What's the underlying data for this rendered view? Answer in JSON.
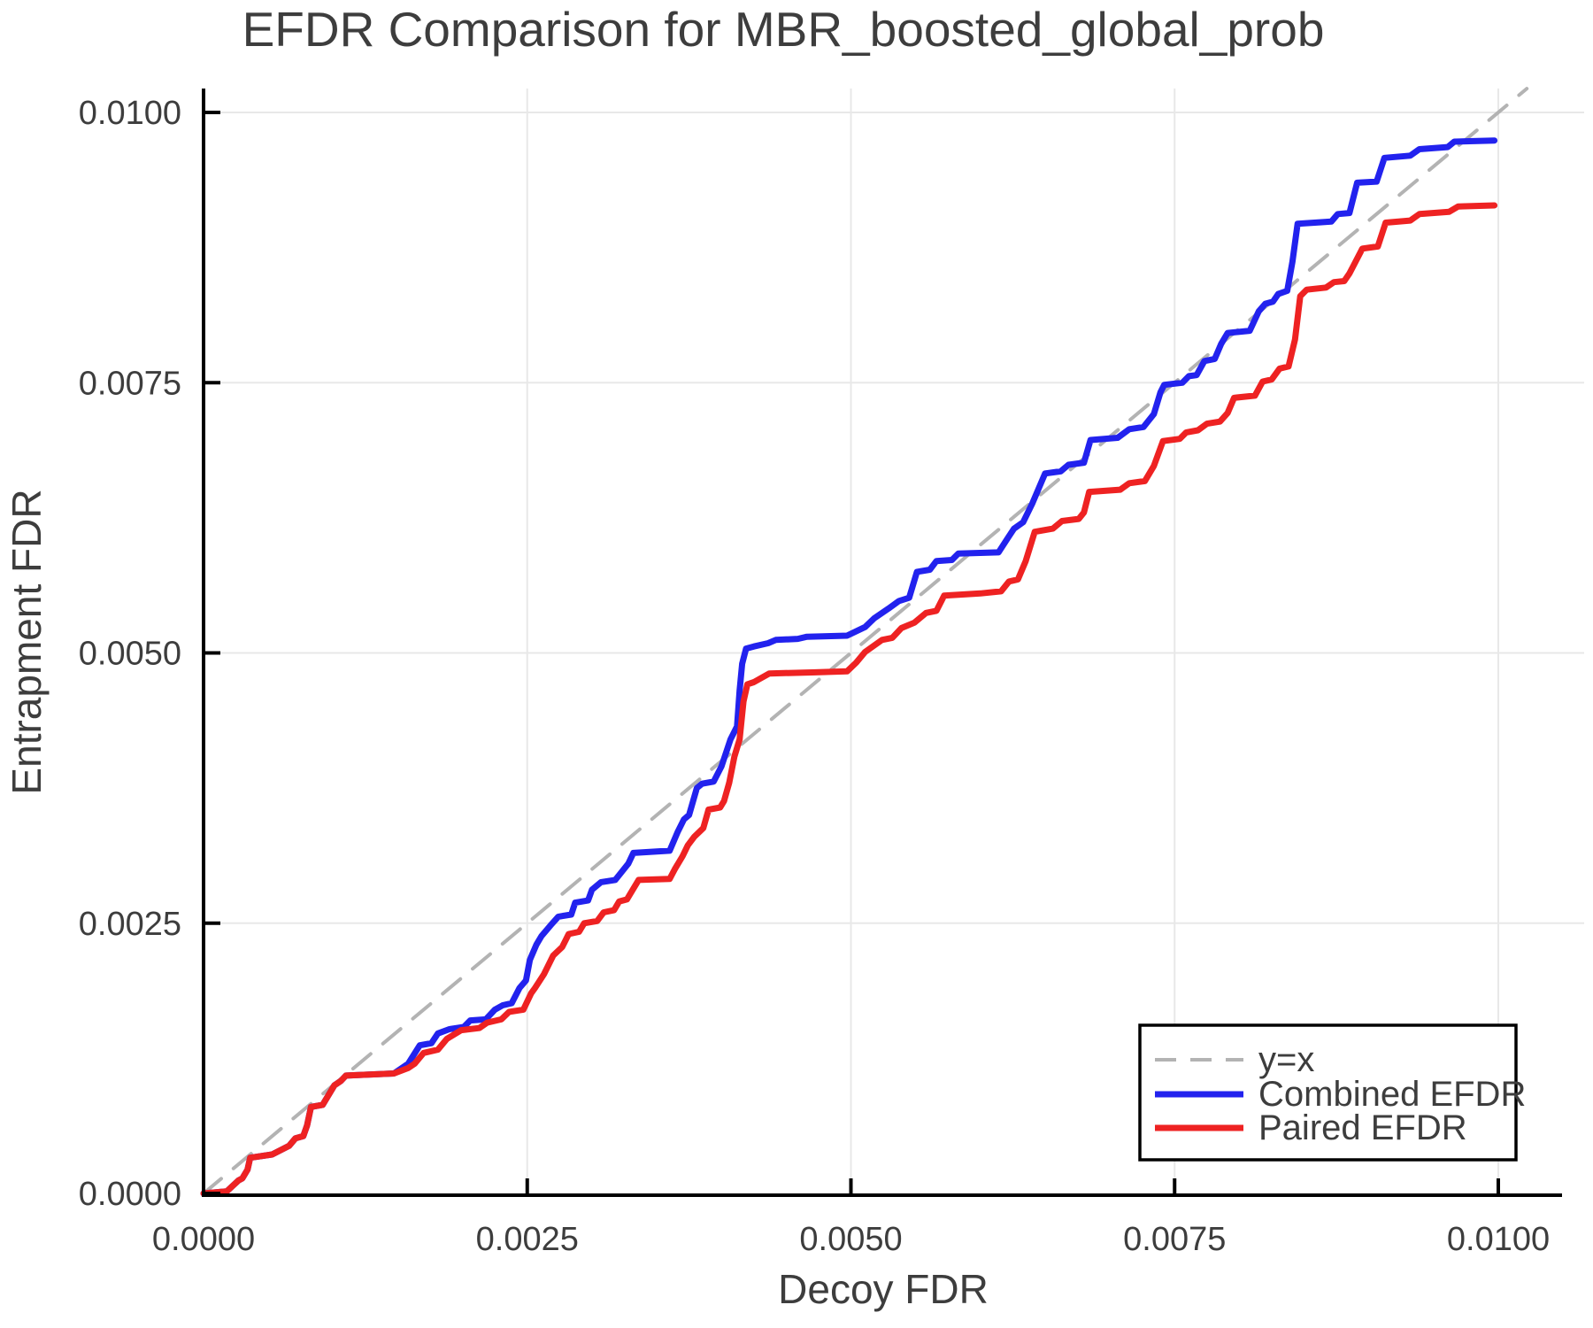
{
  "title": "EFDR Comparison for MBR_boosted_global_prob",
  "axes": {
    "xlabel": "Decoy FDR",
    "ylabel": "Entrapment FDR",
    "x_ticks": {
      "values": [
        0.0,
        0.0025,
        0.005,
        0.0075,
        0.01
      ],
      "labels": [
        "0.0000",
        "0.0025",
        "0.0050",
        "0.0075",
        "0.0100"
      ]
    },
    "y_ticks": {
      "values": [
        0.0,
        0.0025,
        0.005,
        0.0075,
        0.01
      ],
      "labels": [
        "0.0000",
        "0.0025",
        "0.0050",
        "0.0075",
        "0.0100"
      ]
    }
  },
  "colors": {
    "background": "#ffffff",
    "grid": "#e8e8e8",
    "spine": "#000000",
    "text": "#3d3d3d",
    "diagonal": "#b3b3b3",
    "combined": "#2222ee",
    "paired": "#ee2222",
    "legend_border": "#000000",
    "legend_fill": "#ffffff"
  },
  "legend": {
    "position": "lower right"
  },
  "chart_data": {
    "type": "line",
    "title": "EFDR Comparison for MBR_boosted_global_prob",
    "xlabel": "Decoy FDR",
    "ylabel": "Entrapment FDR",
    "xlim": [
      0.0,
      0.0105
    ],
    "ylim": [
      0.0,
      0.0102
    ],
    "grid": true,
    "legend_position": "lower right",
    "series": [
      {
        "name": "y=x",
        "color": "#b3b3b3",
        "style": "dashed",
        "points": [
          [
            0.0,
            0.0
          ],
          [
            0.01022,
            0.01022
          ]
        ]
      },
      {
        "name": "Combined EFDR",
        "color": "#2222ee",
        "style": "solid",
        "points": [
          [
            0.0,
            0.0
          ],
          [
            0.00018,
            2e-05
          ],
          [
            0.00027,
            0.00012
          ],
          [
            0.0003,
            0.00014
          ],
          [
            0.00034,
            0.00022
          ],
          [
            0.00036,
            0.00033
          ],
          [
            0.00053,
            0.00036
          ],
          [
            0.00066,
            0.00044
          ],
          [
            0.00071,
            0.00051
          ],
          [
            0.00077,
            0.00053
          ],
          [
            0.0008,
            0.00063
          ],
          [
            0.00083,
            0.0008
          ],
          [
            0.00092,
            0.00082
          ],
          [
            0.00101,
            0.001
          ],
          [
            0.00106,
            0.00104
          ],
          [
            0.0011,
            0.00109
          ],
          [
            0.00147,
            0.00111
          ],
          [
            0.00158,
            0.0012
          ],
          [
            0.00167,
            0.00137
          ],
          [
            0.00176,
            0.00139
          ],
          [
            0.00181,
            0.00148
          ],
          [
            0.0019,
            0.00152
          ],
          [
            0.00201,
            0.00154
          ],
          [
            0.00206,
            0.0016
          ],
          [
            0.00218,
            0.00161
          ],
          [
            0.00225,
            0.0017
          ],
          [
            0.00231,
            0.00174
          ],
          [
            0.00238,
            0.00176
          ],
          [
            0.00244,
            0.0019
          ],
          [
            0.00249,
            0.00197
          ],
          [
            0.00252,
            0.00216
          ],
          [
            0.00257,
            0.0023
          ],
          [
            0.00261,
            0.00238
          ],
          [
            0.00268,
            0.00248
          ],
          [
            0.00274,
            0.00256
          ],
          [
            0.00284,
            0.00258
          ],
          [
            0.00287,
            0.00269
          ],
          [
            0.00297,
            0.00271
          ],
          [
            0.003,
            0.00281
          ],
          [
            0.00307,
            0.00288
          ],
          [
            0.00318,
            0.0029
          ],
          [
            0.00322,
            0.00296
          ],
          [
            0.00328,
            0.00305
          ],
          [
            0.00332,
            0.00315
          ],
          [
            0.0036,
            0.00317
          ],
          [
            0.00366,
            0.00334
          ],
          [
            0.00371,
            0.00346
          ],
          [
            0.00375,
            0.0035
          ],
          [
            0.00381,
            0.00375
          ],
          [
            0.00385,
            0.00379
          ],
          [
            0.00394,
            0.00381
          ],
          [
            0.004,
            0.00395
          ],
          [
            0.00407,
            0.0042
          ],
          [
            0.00412,
            0.00432
          ],
          [
            0.00414,
            0.00465
          ],
          [
            0.00416,
            0.0049
          ],
          [
            0.00419,
            0.00504
          ],
          [
            0.00425,
            0.00506
          ],
          [
            0.00436,
            0.00509
          ],
          [
            0.00442,
            0.00512
          ],
          [
            0.00459,
            0.00513
          ],
          [
            0.00466,
            0.00515
          ],
          [
            0.00497,
            0.00516
          ],
          [
            0.00511,
            0.00524
          ],
          [
            0.00518,
            0.00532
          ],
          [
            0.00529,
            0.00541
          ],
          [
            0.00537,
            0.00548
          ],
          [
            0.00545,
            0.00551
          ],
          [
            0.00551,
            0.00575
          ],
          [
            0.00561,
            0.00577
          ],
          [
            0.00566,
            0.00585
          ],
          [
            0.00578,
            0.00586
          ],
          [
            0.00583,
            0.00592
          ],
          [
            0.00614,
            0.00593
          ],
          [
            0.00621,
            0.00606
          ],
          [
            0.00626,
            0.00615
          ],
          [
            0.00633,
            0.00621
          ],
          [
            0.0064,
            0.00638
          ],
          [
            0.0065,
            0.00666
          ],
          [
            0.00662,
            0.00668
          ],
          [
            0.00668,
            0.00674
          ],
          [
            0.0068,
            0.00676
          ],
          [
            0.00685,
            0.00697
          ],
          [
            0.00706,
            0.00699
          ],
          [
            0.00715,
            0.00707
          ],
          [
            0.00726,
            0.00709
          ],
          [
            0.00734,
            0.00721
          ],
          [
            0.00739,
            0.00741
          ],
          [
            0.00742,
            0.00748
          ],
          [
            0.00756,
            0.0075
          ],
          [
            0.00761,
            0.00756
          ],
          [
            0.00767,
            0.00757
          ],
          [
            0.00773,
            0.0077
          ],
          [
            0.00781,
            0.00772
          ],
          [
            0.00786,
            0.00786
          ],
          [
            0.00791,
            0.00796
          ],
          [
            0.00808,
            0.00798
          ],
          [
            0.00815,
            0.00816
          ],
          [
            0.0082,
            0.00823
          ],
          [
            0.00826,
            0.00825
          ],
          [
            0.0083,
            0.00832
          ],
          [
            0.00837,
            0.00835
          ],
          [
            0.00841,
            0.00862
          ],
          [
            0.00845,
            0.00897
          ],
          [
            0.00871,
            0.00899
          ],
          [
            0.00876,
            0.00906
          ],
          [
            0.00885,
            0.00907
          ],
          [
            0.00891,
            0.00935
          ],
          [
            0.00906,
            0.00936
          ],
          [
            0.00912,
            0.00958
          ],
          [
            0.00932,
            0.0096
          ],
          [
            0.00939,
            0.00966
          ],
          [
            0.00961,
            0.00968
          ],
          [
            0.00966,
            0.00973
          ],
          [
            0.00997,
            0.00974
          ]
        ]
      },
      {
        "name": "Paired EFDR",
        "color": "#ee2222",
        "style": "solid",
        "points": [
          [
            0.0,
            0.0
          ],
          [
            0.00018,
            2e-05
          ],
          [
            0.00027,
            0.00012
          ],
          [
            0.0003,
            0.00014
          ],
          [
            0.00034,
            0.00022
          ],
          [
            0.00036,
            0.00033
          ],
          [
            0.00053,
            0.00036
          ],
          [
            0.00066,
            0.00044
          ],
          [
            0.00071,
            0.00051
          ],
          [
            0.00077,
            0.00053
          ],
          [
            0.0008,
            0.00063
          ],
          [
            0.00083,
            0.0008
          ],
          [
            0.00092,
            0.00082
          ],
          [
            0.00101,
            0.001
          ],
          [
            0.00106,
            0.00104
          ],
          [
            0.0011,
            0.00109
          ],
          [
            0.00147,
            0.00111
          ],
          [
            0.00158,
            0.00116
          ],
          [
            0.00163,
            0.0012
          ],
          [
            0.0017,
            0.0013
          ],
          [
            0.00181,
            0.00133
          ],
          [
            0.00188,
            0.00143
          ],
          [
            0.00199,
            0.00151
          ],
          [
            0.00213,
            0.00153
          ],
          [
            0.00219,
            0.00158
          ],
          [
            0.0023,
            0.00161
          ],
          [
            0.00236,
            0.00168
          ],
          [
            0.00247,
            0.0017
          ],
          [
            0.00253,
            0.00185
          ],
          [
            0.00256,
            0.0019
          ],
          [
            0.00263,
            0.00203
          ],
          [
            0.0027,
            0.0022
          ],
          [
            0.00277,
            0.00228
          ],
          [
            0.00282,
            0.0024
          ],
          [
            0.0029,
            0.00242
          ],
          [
            0.00294,
            0.0025
          ],
          [
            0.00304,
            0.00252
          ],
          [
            0.00309,
            0.0026
          ],
          [
            0.00317,
            0.00262
          ],
          [
            0.00321,
            0.0027
          ],
          [
            0.00327,
            0.00272
          ],
          [
            0.0033,
            0.00278
          ],
          [
            0.00336,
            0.0029
          ],
          [
            0.0036,
            0.00291
          ],
          [
            0.00364,
            0.003
          ],
          [
            0.0037,
            0.00312
          ],
          [
            0.00374,
            0.00322
          ],
          [
            0.00379,
            0.0033
          ],
          [
            0.00386,
            0.00338
          ],
          [
            0.0039,
            0.00355
          ],
          [
            0.00399,
            0.00357
          ],
          [
            0.00402,
            0.00363
          ],
          [
            0.00406,
            0.0038
          ],
          [
            0.0041,
            0.00404
          ],
          [
            0.00414,
            0.0042
          ],
          [
            0.00417,
            0.00455
          ],
          [
            0.0042,
            0.00471
          ],
          [
            0.00425,
            0.00473
          ],
          [
            0.00437,
            0.00481
          ],
          [
            0.0047,
            0.00482
          ],
          [
            0.00497,
            0.00483
          ],
          [
            0.00504,
            0.00491
          ],
          [
            0.00511,
            0.00501
          ],
          [
            0.00524,
            0.00512
          ],
          [
            0.00532,
            0.00514
          ],
          [
            0.00539,
            0.00523
          ],
          [
            0.00549,
            0.00528
          ],
          [
            0.00558,
            0.00537
          ],
          [
            0.00566,
            0.00539
          ],
          [
            0.00572,
            0.00553
          ],
          [
            0.006,
            0.00555
          ],
          [
            0.00616,
            0.00557
          ],
          [
            0.00622,
            0.00566
          ],
          [
            0.00629,
            0.00568
          ],
          [
            0.00635,
            0.00585
          ],
          [
            0.00642,
            0.00612
          ],
          [
            0.00656,
            0.00615
          ],
          [
            0.00663,
            0.00622
          ],
          [
            0.00676,
            0.00624
          ],
          [
            0.0068,
            0.0063
          ],
          [
            0.00684,
            0.00649
          ],
          [
            0.00708,
            0.00651
          ],
          [
            0.00715,
            0.00657
          ],
          [
            0.00727,
            0.00659
          ],
          [
            0.00734,
            0.00673
          ],
          [
            0.00741,
            0.00696
          ],
          [
            0.00754,
            0.00698
          ],
          [
            0.00759,
            0.00704
          ],
          [
            0.00768,
            0.00706
          ],
          [
            0.00775,
            0.00712
          ],
          [
            0.00785,
            0.00714
          ],
          [
            0.00791,
            0.00722
          ],
          [
            0.00796,
            0.00736
          ],
          [
            0.00812,
            0.00738
          ],
          [
            0.00818,
            0.00751
          ],
          [
            0.00825,
            0.00753
          ],
          [
            0.00831,
            0.00763
          ],
          [
            0.00838,
            0.00765
          ],
          [
            0.00843,
            0.0079
          ],
          [
            0.00847,
            0.0083
          ],
          [
            0.00852,
            0.00836
          ],
          [
            0.00867,
            0.00838
          ],
          [
            0.00873,
            0.00843
          ],
          [
            0.00881,
            0.00844
          ],
          [
            0.00885,
            0.00851
          ],
          [
            0.00895,
            0.00874
          ],
          [
            0.00907,
            0.00876
          ],
          [
            0.00913,
            0.00898
          ],
          [
            0.00932,
            0.009
          ],
          [
            0.00939,
            0.00906
          ],
          [
            0.00962,
            0.00908
          ],
          [
            0.00969,
            0.00913
          ],
          [
            0.00997,
            0.00914
          ]
        ]
      }
    ]
  }
}
